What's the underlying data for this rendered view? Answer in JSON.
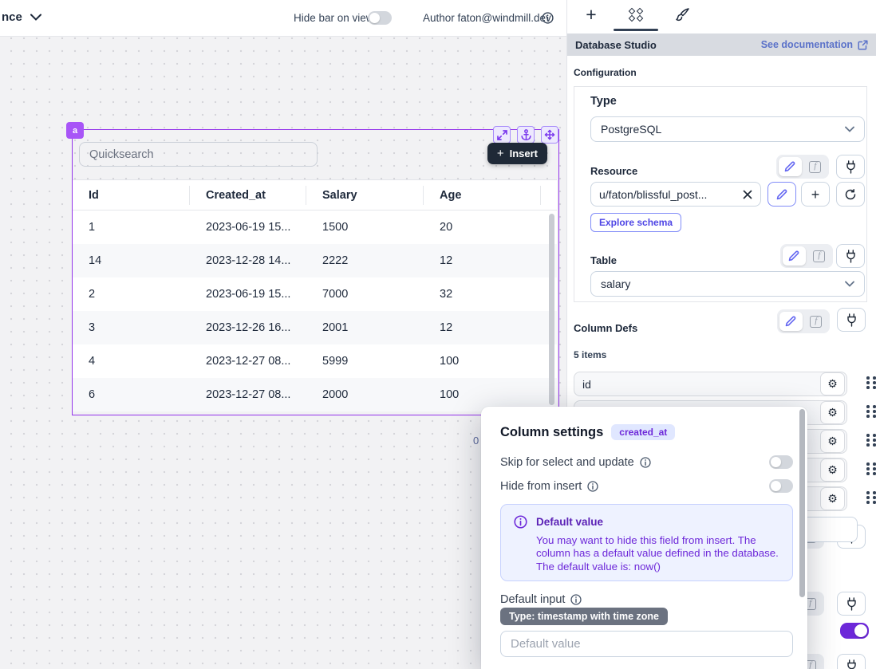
{
  "topbar": {
    "app_breadcrumb": "nce",
    "hide_bar_label": "Hide bar on view",
    "author_label": "Author faton@windmill.dev"
  },
  "canvas": {
    "component_id": "a",
    "quicksearch_placeholder": "Quicksearch",
    "insert_label": "Insert",
    "selected_count": "0",
    "table": {
      "headers": [
        "Id",
        "Created_at",
        "Salary",
        "Age"
      ],
      "rows": [
        [
          "1",
          "2023-06-19 15...",
          "1500",
          "20"
        ],
        [
          "14",
          "2023-12-28 14...",
          "2222",
          "12"
        ],
        [
          "2",
          "2023-06-19 15...",
          "7000",
          "32"
        ],
        [
          "3",
          "2023-12-26 16...",
          "2001",
          "12"
        ],
        [
          "4",
          "2023-12-27 08...",
          "5999",
          "100"
        ],
        [
          "6",
          "2023-12-27 08...",
          "2000",
          "100"
        ]
      ]
    }
  },
  "panel": {
    "header_title": "Database Studio",
    "doc_link_label": "See documentation",
    "configuration_label": "Configuration",
    "type_field": {
      "label": "Type",
      "value": "PostgreSQL"
    },
    "resource_field": {
      "label": "Resource",
      "value": "u/faton/blissful_post...",
      "explore_button": "Explore schema"
    },
    "table_field": {
      "label": "Table",
      "value": "salary"
    },
    "column_defs": {
      "label": "Column Defs",
      "count_label": "5 items",
      "item_count": 5,
      "items_visible": [
        "id"
      ]
    }
  },
  "modal": {
    "title": "Column settings",
    "column_badge": "created_at",
    "skip_label": "Skip for select and update",
    "hide_label": "Hide from insert",
    "alert": {
      "title": "Default value",
      "body": "You may want to hide this field from insert. The column has a default value defined in the database. The default value is: now()"
    },
    "default_input_label": "Default input",
    "type_badge": "Type: timestamp with time zone",
    "input_placeholder": "Default value"
  },
  "colors": {
    "selection_purple": "#9333ea",
    "accent_purple": "#7c3aed",
    "toggle_on": "#6d28d9",
    "doc_link": "#5b72c9",
    "insert_button_bg": "#1f2937",
    "alert_bg": "#eef2ff",
    "alert_text": "#6d28d9",
    "column_badge_bg": "#e0e7ff",
    "type_badge_bg": "#6b7280"
  }
}
